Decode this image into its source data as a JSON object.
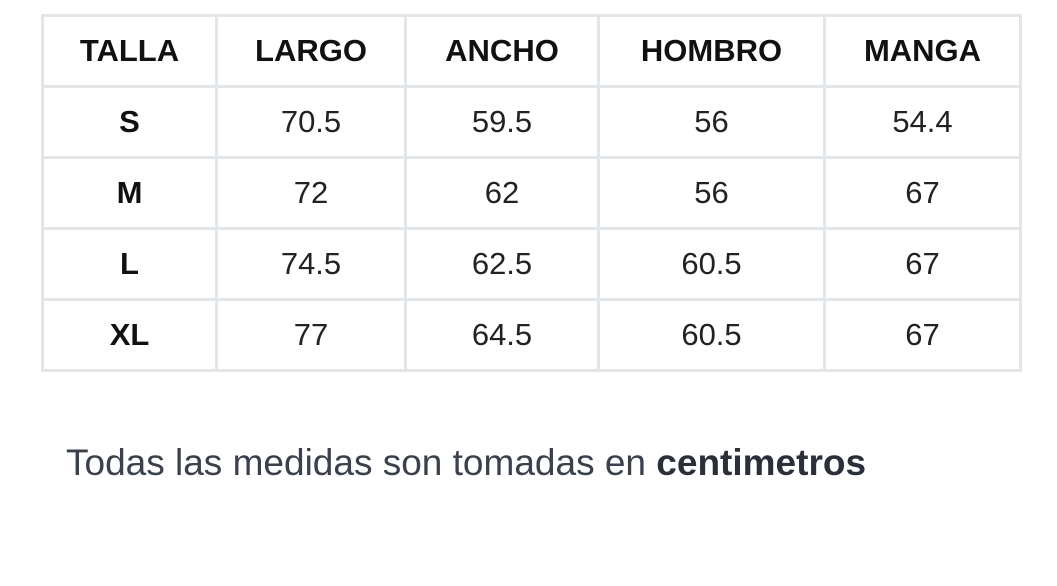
{
  "table": {
    "header": [
      "TALLA",
      "LARGO",
      "ANCHO",
      "HOMBRO",
      "MANGA"
    ],
    "rows": [
      [
        "S",
        "70.5",
        "59.5",
        "56",
        "54.4"
      ],
      [
        "M",
        "72",
        "62",
        "56",
        "67"
      ],
      [
        "L",
        "74.5",
        "62.5",
        "60.5",
        "67"
      ],
      [
        "XL",
        "77",
        "64.5",
        "60.5",
        "67"
      ]
    ]
  },
  "note": {
    "text": "Todas las medidas son tomadas en",
    "bold": "centimetros"
  }
}
